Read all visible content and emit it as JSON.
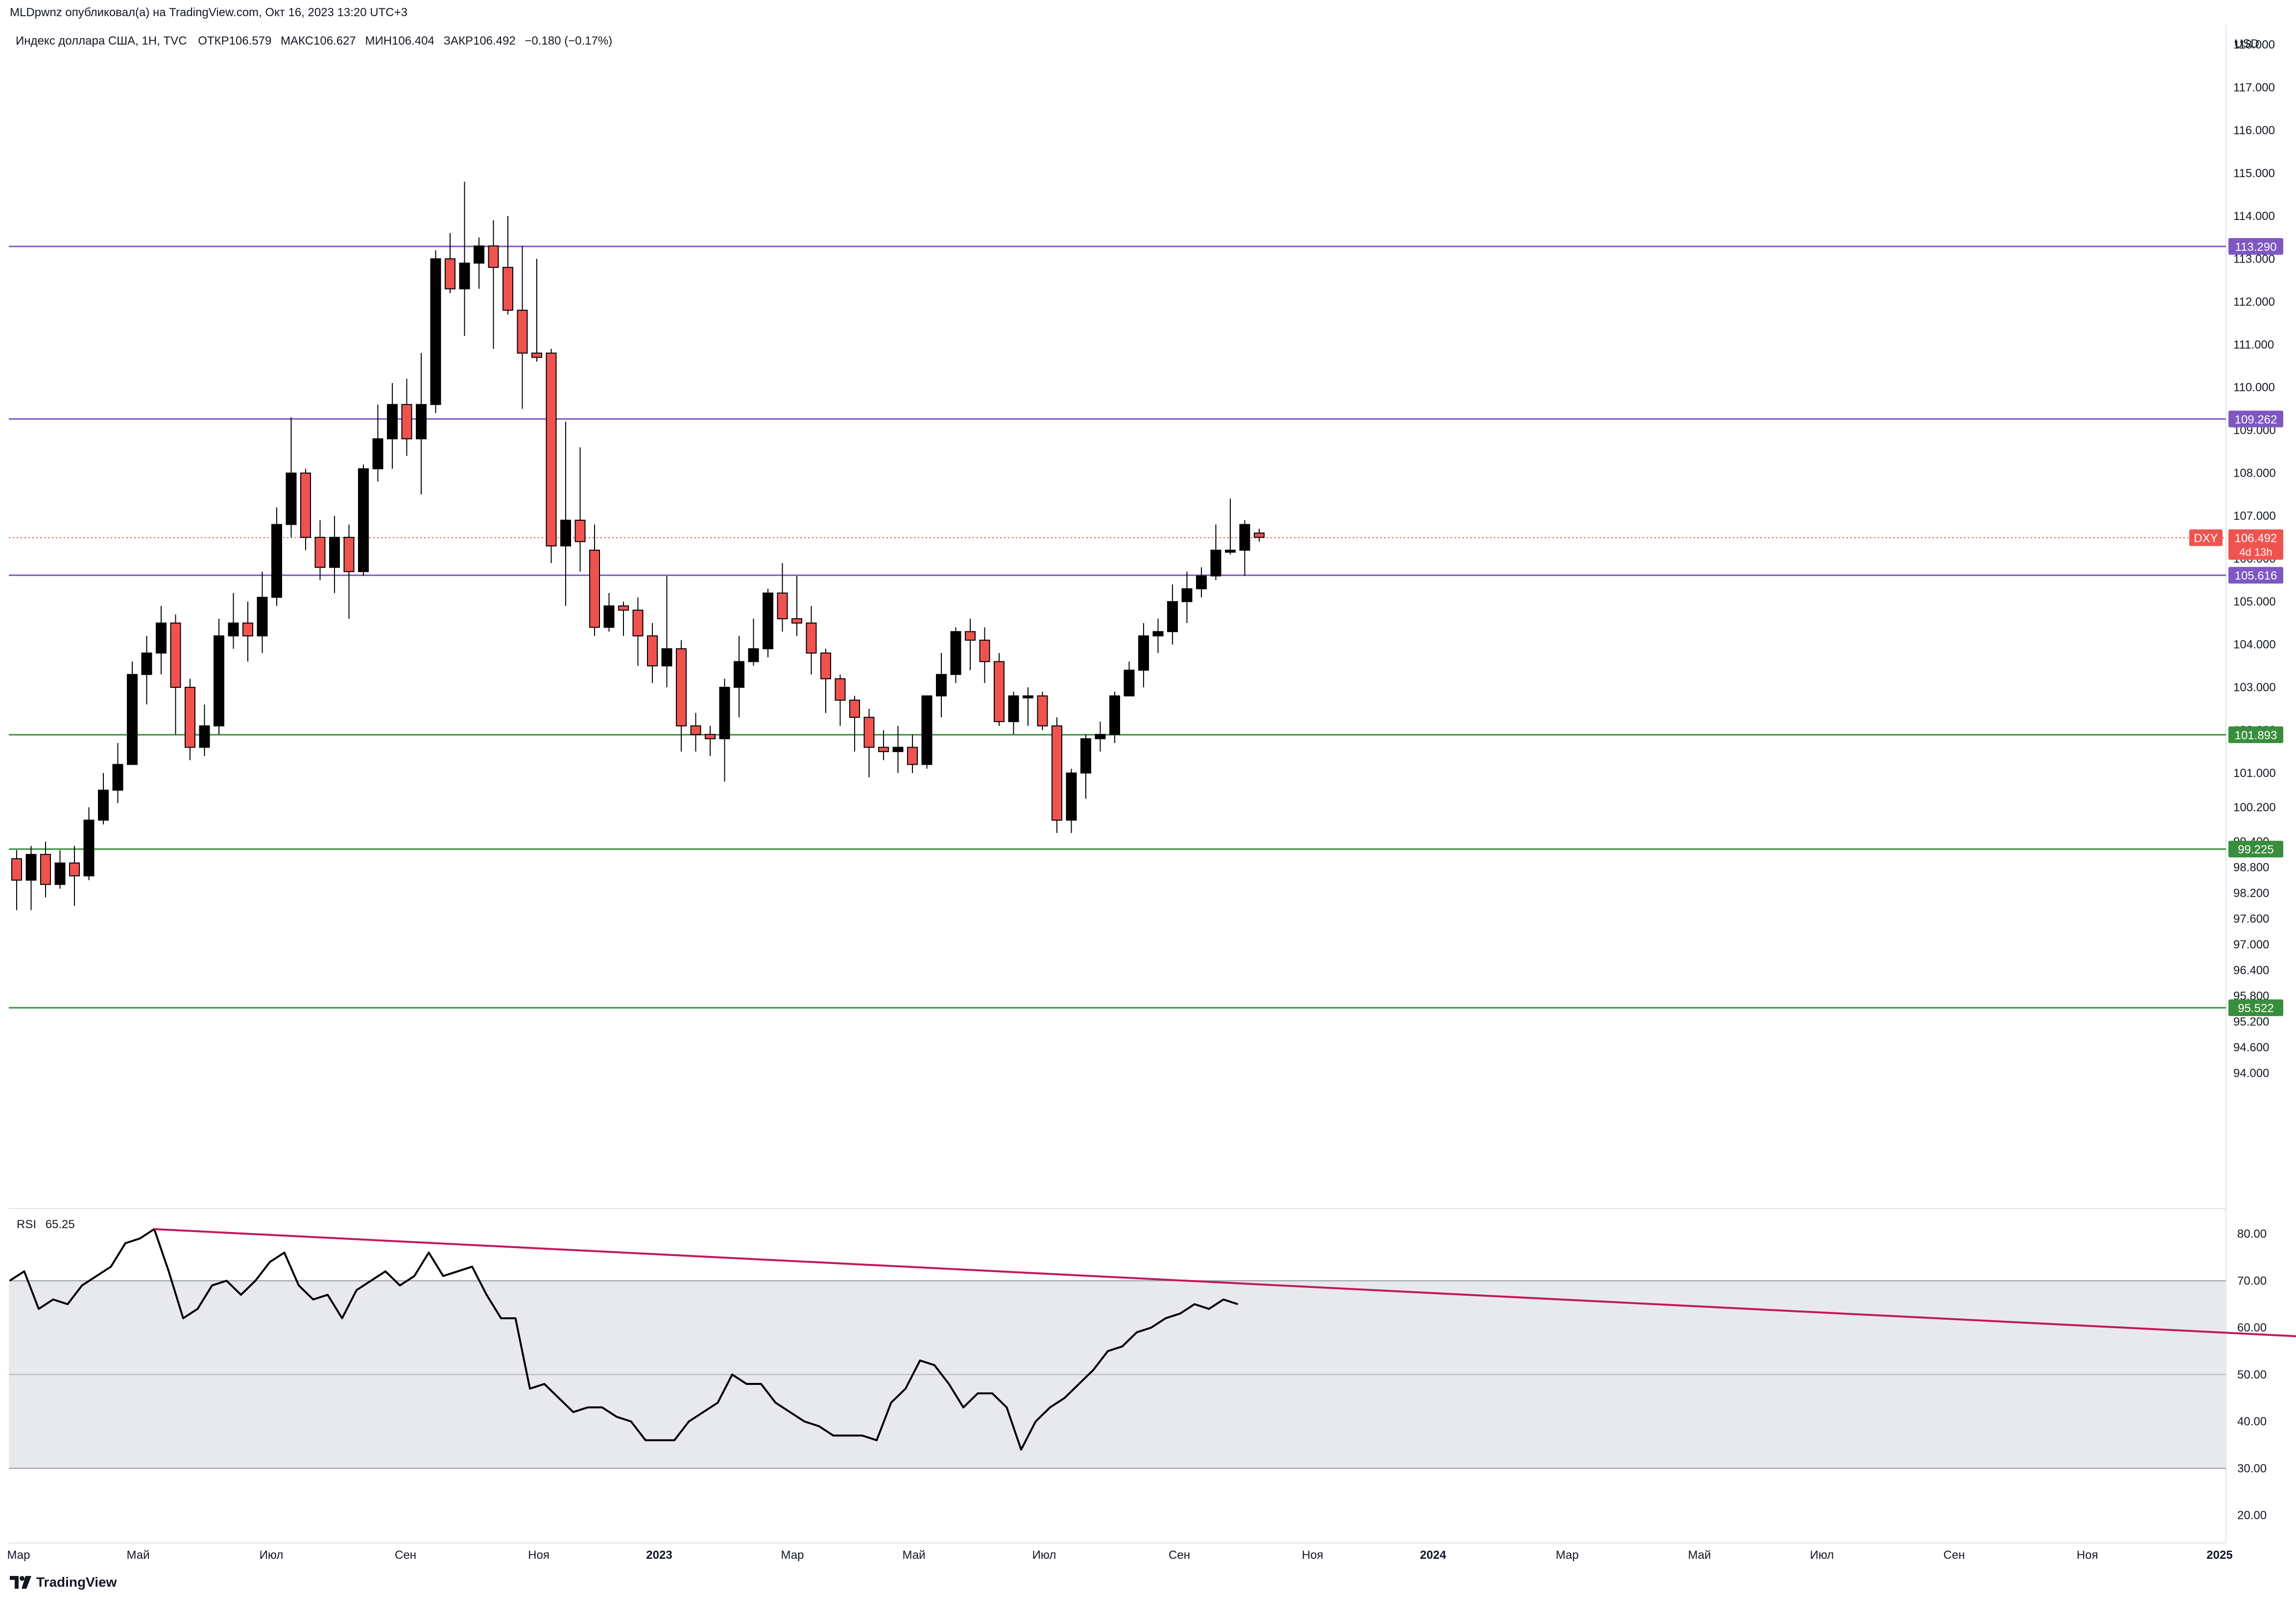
{
  "header": {
    "published": "MLDpwnz опубликовал(а) на TradingView.com, Окт 16, 2023 13:20 UTC+3",
    "symbol_line": "Индекс доллара США, 1Н, TVC",
    "ohlc": {
      "open_label": "ОТКР",
      "open": "106.579",
      "high_label": "МАКС",
      "high": "106.627",
      "low_label": "МИН",
      "low": "106.404",
      "close_label": "ЗАКР",
      "close": "106.492",
      "change": "−0.180 (−0.17%)"
    }
  },
  "footer": {
    "logo_text": "TradingView"
  },
  "colors": {
    "up": "#000000",
    "down": "#ef5350",
    "purple": "#7e57c2",
    "green": "#388e3c",
    "trendline": "#c2185b",
    "rsi_band": "#e8e9ec",
    "grid": "#e0e3eb",
    "text": "#131722"
  },
  "chart_data": [
    {
      "type": "candlestick",
      "currency": "USD",
      "price_axis_ticks": [
        "118.000",
        "117.000",
        "116.000",
        "115.000",
        "114.000",
        "113.000",
        "112.000",
        "111.000",
        "110.000",
        "109.000",
        "108.000",
        "107.000",
        "106.000",
        "105.000",
        "104.000",
        "103.000",
        "102.000",
        "101.000",
        "100.200",
        "99.400",
        "98.800",
        "98.200",
        "97.600",
        "97.000",
        "96.400",
        "95.800",
        "95.200",
        "94.600",
        "94.000"
      ],
      "x_axis_labels": [
        "Мар",
        "Май",
        "Июл",
        "Сен",
        "Ноя",
        "2023",
        "Мар",
        "Май",
        "Июл",
        "Сен",
        "Ноя",
        "2024",
        "Мар",
        "Май",
        "Июл",
        "Сен",
        "Ноя",
        "2025"
      ],
      "horizontal_levels": [
        {
          "value": 113.29,
          "label": "113.290",
          "color": "#7e57c2"
        },
        {
          "value": 109.262,
          "label": "109.262",
          "color": "#7e57c2"
        },
        {
          "value": 105.616,
          "label": "105.616",
          "color": "#7e57c2"
        },
        {
          "value": 101.893,
          "label": "101.893",
          "color": "#388e3c"
        },
        {
          "value": 99.225,
          "label": "99.225",
          "color": "#388e3c"
        },
        {
          "value": 95.522,
          "label": "95.522",
          "color": "#388e3c"
        }
      ],
      "current_price": {
        "symbol": "DXY",
        "value": "106.492",
        "countdown": "4d 13h"
      },
      "candles": [
        [
          99.0,
          98.5,
          99.2,
          97.8
        ],
        [
          98.5,
          99.1,
          99.3,
          97.8
        ],
        [
          99.1,
          98.4,
          99.4,
          98.1
        ],
        [
          98.4,
          98.9,
          99.2,
          98.3
        ],
        [
          98.9,
          98.6,
          99.3,
          97.9
        ],
        [
          98.6,
          99.9,
          100.2,
          98.5
        ],
        [
          99.9,
          100.6,
          101.0,
          99.8
        ],
        [
          100.6,
          101.2,
          101.7,
          100.3
        ],
        [
          101.2,
          103.3,
          103.6,
          101.2
        ],
        [
          103.3,
          103.8,
          104.2,
          102.6
        ],
        [
          103.8,
          104.5,
          104.9,
          103.3
        ],
        [
          104.5,
          103.0,
          104.7,
          101.9
        ],
        [
          103.0,
          101.6,
          103.2,
          101.3
        ],
        [
          101.6,
          102.1,
          102.6,
          101.4
        ],
        [
          102.1,
          104.2,
          104.6,
          101.9
        ],
        [
          104.2,
          104.5,
          105.2,
          103.9
        ],
        [
          104.5,
          104.2,
          105.0,
          103.6
        ],
        [
          104.2,
          105.1,
          105.7,
          103.8
        ],
        [
          105.1,
          106.8,
          107.2,
          104.9
        ],
        [
          106.8,
          108.0,
          109.3,
          106.5
        ],
        [
          108.0,
          106.5,
          108.1,
          106.2
        ],
        [
          106.5,
          105.8,
          106.9,
          105.5
        ],
        [
          105.8,
          106.5,
          107.0,
          105.2
        ],
        [
          106.5,
          105.7,
          106.8,
          104.6
        ],
        [
          105.7,
          108.1,
          108.2,
          105.6
        ],
        [
          108.1,
          108.8,
          109.6,
          107.8
        ],
        [
          108.8,
          109.6,
          110.1,
          108.1
        ],
        [
          109.6,
          108.8,
          110.2,
          108.4
        ],
        [
          108.8,
          109.6,
          110.8,
          107.5
        ],
        [
          109.6,
          113.0,
          113.2,
          109.4
        ],
        [
          113.0,
          112.3,
          113.6,
          112.2
        ],
        [
          112.3,
          112.9,
          114.8,
          111.2
        ],
        [
          112.9,
          113.3,
          113.5,
          112.3
        ],
        [
          113.3,
          112.8,
          113.9,
          110.9
        ],
        [
          112.8,
          111.8,
          114.0,
          111.7
        ],
        [
          111.8,
          110.8,
          113.3,
          109.5
        ],
        [
          110.8,
          110.7,
          113.0,
          110.6
        ],
        [
          110.8,
          106.3,
          110.9,
          105.9
        ],
        [
          106.3,
          106.9,
          109.2,
          104.9
        ],
        [
          106.9,
          106.4,
          108.6,
          105.7
        ],
        [
          106.2,
          104.4,
          106.8,
          104.2
        ],
        [
          104.4,
          104.9,
          105.2,
          104.3
        ],
        [
          104.9,
          104.8,
          105.0,
          104.2
        ],
        [
          104.8,
          104.2,
          105.1,
          103.5
        ],
        [
          104.2,
          103.5,
          104.5,
          103.1
        ],
        [
          103.5,
          103.9,
          105.6,
          103.0
        ],
        [
          103.9,
          102.1,
          104.1,
          101.5
        ],
        [
          102.1,
          101.9,
          102.4,
          101.5
        ],
        [
          101.9,
          101.8,
          102.1,
          101.4
        ],
        [
          101.8,
          103.0,
          103.2,
          100.8
        ],
        [
          103.0,
          103.6,
          104.2,
          102.3
        ],
        [
          103.6,
          103.9,
          104.6,
          103.5
        ],
        [
          103.9,
          105.2,
          105.3,
          103.7
        ],
        [
          105.2,
          104.6,
          105.9,
          104.3
        ],
        [
          104.6,
          104.5,
          105.6,
          104.2
        ],
        [
          104.5,
          103.8,
          104.9,
          103.3
        ],
        [
          103.8,
          103.2,
          103.9,
          102.4
        ],
        [
          103.2,
          102.7,
          103.3,
          102.1
        ],
        [
          102.7,
          102.3,
          102.8,
          101.5
        ],
        [
          102.3,
          101.6,
          102.5,
          100.9
        ],
        [
          101.6,
          101.5,
          102.0,
          101.3
        ],
        [
          101.5,
          101.6,
          102.1,
          101.0
        ],
        [
          101.6,
          101.2,
          101.9,
          101.0
        ],
        [
          101.2,
          102.8,
          102.8,
          101.1
        ],
        [
          102.8,
          103.3,
          103.8,
          102.3
        ],
        [
          103.3,
          104.3,
          104.4,
          103.1
        ],
        [
          104.3,
          104.1,
          104.6,
          103.4
        ],
        [
          104.1,
          103.6,
          104.4,
          103.1
        ],
        [
          103.6,
          102.2,
          103.8,
          102.1
        ],
        [
          102.2,
          102.8,
          102.9,
          101.9
        ],
        [
          102.8,
          102.8,
          103.0,
          102.1
        ],
        [
          102.8,
          102.1,
          102.9,
          102.0
        ],
        [
          102.1,
          99.9,
          102.3,
          99.6
        ],
        [
          99.9,
          101.0,
          101.1,
          99.6
        ],
        [
          101.0,
          101.8,
          101.9,
          100.4
        ],
        [
          101.8,
          101.9,
          102.2,
          101.5
        ],
        [
          101.9,
          102.8,
          102.9,
          101.7
        ],
        [
          102.8,
          103.4,
          103.6,
          102.8
        ],
        [
          103.4,
          104.2,
          104.5,
          103.0
        ],
        [
          104.2,
          104.3,
          104.6,
          103.8
        ],
        [
          104.3,
          105.0,
          105.4,
          104.0
        ],
        [
          105.0,
          105.3,
          105.7,
          104.5
        ],
        [
          105.3,
          105.6,
          105.8,
          105.1
        ],
        [
          105.6,
          106.2,
          106.8,
          105.5
        ],
        [
          106.2,
          106.2,
          107.4,
          106.1
        ],
        [
          106.2,
          106.8,
          106.9,
          105.6
        ],
        [
          106.6,
          106.5,
          106.7,
          106.4
        ]
      ]
    },
    {
      "type": "line",
      "title": "RSI",
      "value_label": "65.25",
      "y_axis_ticks": [
        "80.00",
        "70.00",
        "60.00",
        "50.00",
        "40.00",
        "30.00",
        "20.00"
      ],
      "band": [
        30,
        70
      ],
      "values": [
        70,
        72,
        64,
        66,
        65,
        69,
        71,
        73,
        78,
        79,
        81,
        72,
        62,
        64,
        69,
        70,
        67,
        70,
        74,
        76,
        69,
        66,
        67,
        62,
        68,
        70,
        72,
        69,
        71,
        76,
        71,
        72,
        73,
        67,
        62,
        62,
        47,
        48,
        45,
        42,
        43,
        43,
        41,
        40,
        36,
        36,
        36,
        40,
        42,
        44,
        50,
        48,
        48,
        44,
        42,
        40,
        39,
        37,
        37,
        37,
        36,
        44,
        47,
        53,
        52,
        48,
        43,
        46,
        46,
        43,
        34,
        40,
        43,
        45,
        48,
        51,
        55,
        56,
        59,
        60,
        62,
        63,
        65,
        64,
        66,
        65
      ],
      "trendline": {
        "from": [
          10,
          81
        ],
        "to": [
          221,
          48.5
        ]
      }
    }
  ]
}
